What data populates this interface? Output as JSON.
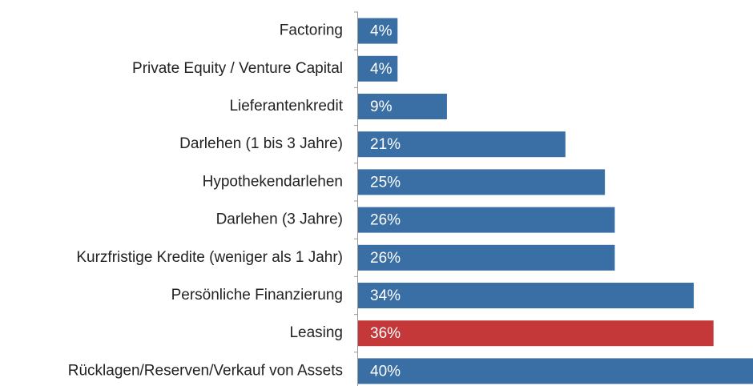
{
  "chart_data": {
    "type": "bar",
    "orientation": "horizontal",
    "categories": [
      "Factoring",
      "Private Equity / Venture Capital",
      "Lieferantenkredit",
      "Darlehen (1 bis 3 Jahre)",
      "Hypothekendarlehen",
      "Darlehen (3 Jahre)",
      "Kurzfristige Kredite (weniger als 1 Jahr)",
      "Persönliche Finanzierung",
      "Leasing",
      "Rücklagen/Reserven/Verkauf von Assets"
    ],
    "values": [
      4,
      4,
      9,
      21,
      25,
      26,
      26,
      34,
      36,
      40
    ],
    "value_labels": [
      "4%",
      "4%",
      "9%",
      "21%",
      "25%",
      "26%",
      "26%",
      "34%",
      "36%",
      "40%"
    ],
    "colors": [
      "#3a6fa5",
      "#3a6fa5",
      "#3a6fa5",
      "#3a6fa5",
      "#3a6fa5",
      "#3a6fa5",
      "#3a6fa5",
      "#3a6fa5",
      "#c4383a",
      "#3a6fa5"
    ]
  }
}
